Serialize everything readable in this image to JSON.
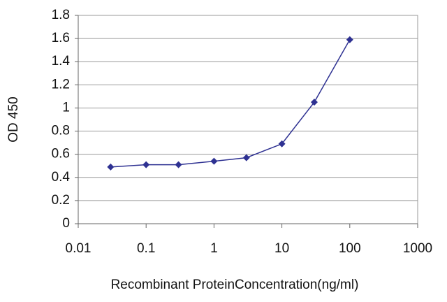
{
  "chart_data": {
    "type": "line",
    "x_label": "Recombinant ProteinConcentration(ng/ml)",
    "y_label": "OD 450",
    "x": [
      0.03,
      0.1,
      0.3,
      1,
      3,
      10,
      30,
      100
    ],
    "series": [
      {
        "name": "OD 450",
        "color": "#2e3192",
        "values": [
          0.49,
          0.51,
          0.51,
          0.54,
          0.57,
          0.69,
          1.05,
          1.59
        ]
      }
    ],
    "x_scale": "log",
    "xlim": [
      0.01,
      1000
    ],
    "xticks": [
      0.01,
      0.1,
      1,
      10,
      100,
      1000
    ],
    "ylim": [
      0,
      1.8
    ],
    "yticks": [
      0,
      0.2,
      0.4,
      0.6,
      0.8,
      1,
      1.2,
      1.4,
      1.6,
      1.8
    ],
    "grid": true
  }
}
